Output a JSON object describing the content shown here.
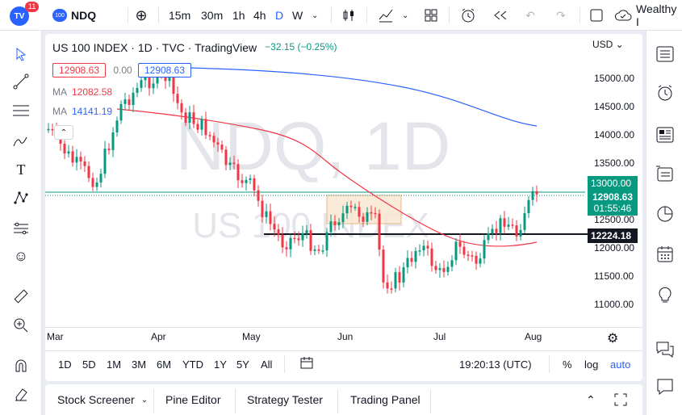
{
  "topbar": {
    "logo_badge": "11",
    "symbol_badge": "100",
    "symbol": "NDQ",
    "intervals": [
      "15m",
      "30m",
      "1h",
      "4h",
      "D",
      "W"
    ],
    "active_interval": "D",
    "account_label": "Wealthy I"
  },
  "legend": {
    "title": "US 100 INDEX · 1D · TVC · TradingView",
    "change": "−32.15 (−0.25%)",
    "bid": "12908.63",
    "spread": "0.00",
    "ask": "12908.63",
    "ma1_label": "MA",
    "ma1_value": "12082.58",
    "ma2_label": "MA",
    "ma2_value": "14141.19"
  },
  "watermark": {
    "main": "NDQ, 1D",
    "sub": "US 100 INDEX"
  },
  "price_axis": {
    "currency": "USD",
    "ticks": [
      "15000.00",
      "14500.00",
      "14000.00",
      "13500.00",
      "13000.00",
      "12500.00",
      "12000.00",
      "11500.00",
      "11000.00"
    ],
    "current_price": "12908.63",
    "countdown": "01:55:46",
    "level_price": "12224.18",
    "highlight_tick": "13000.00"
  },
  "time_axis": {
    "labels": [
      "Mar",
      "Apr",
      "May",
      "Jun",
      "Jul",
      "Aug"
    ]
  },
  "range_bar": {
    "ranges": [
      "1D",
      "5D",
      "1M",
      "3M",
      "6M",
      "YTD",
      "1Y",
      "5Y",
      "All"
    ],
    "clock": "19:20:13 (UTC)",
    "percent": "%",
    "log": "log",
    "auto": "auto"
  },
  "bottom_panel": {
    "tabs": [
      "Stock Screener",
      "Pine Editor",
      "Strategy Tester",
      "Trading Panel"
    ]
  },
  "colors": {
    "up": "#089981",
    "down": "#f23645",
    "ma_red": "#f23645",
    "ma_blue": "#2962ff",
    "accent": "#2962ff"
  }
}
